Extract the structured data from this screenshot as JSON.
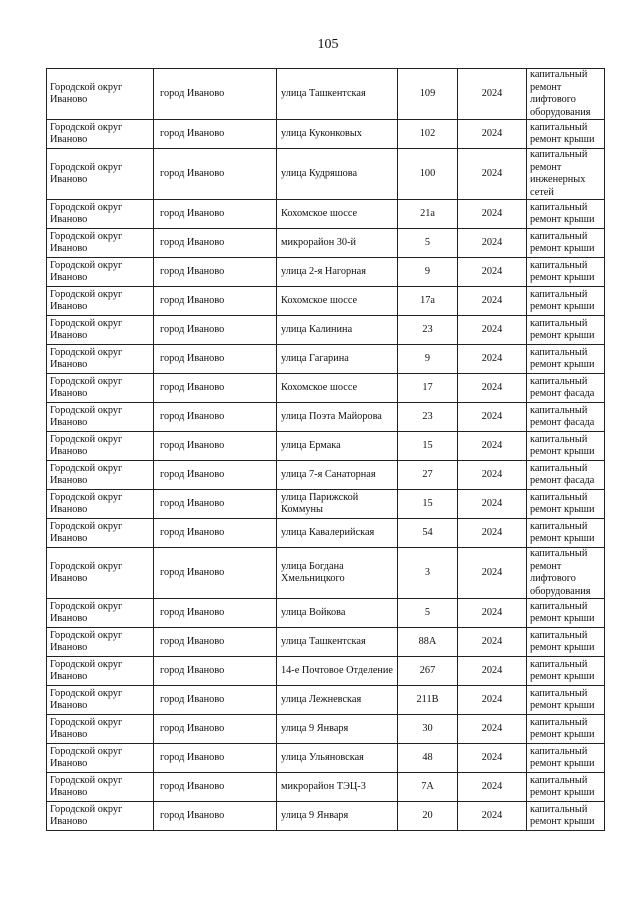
{
  "page_number": "105",
  "rows": [
    {
      "district": "Городской округ Иваново",
      "city": "город Иваново",
      "street": "улица Ташкентская",
      "house": "109",
      "year": "2024",
      "work": "капитальный ремонт лифтового оборудования",
      "lines": 4
    },
    {
      "district": "Городской округ Иваново",
      "city": "город Иваново",
      "street": "улица Куконковых",
      "house": "102",
      "year": "2024",
      "work": "капитальный ремонт крыши",
      "lines": 2
    },
    {
      "district": "Городской округ Иваново",
      "city": "город Иваново",
      "street": "улица Кудряшова",
      "house": "100",
      "year": "2024",
      "work": "капитальный ремонт инженерных сетей",
      "lines": 4
    },
    {
      "district": "Городской округ Иваново",
      "city": "город Иваново",
      "street": "Кохомское шоссе",
      "house": "21а",
      "year": "2024",
      "work": "капитальный ремонт крыши",
      "lines": 2
    },
    {
      "district": "Городской округ Иваново",
      "city": "город Иваново",
      "street": "микрорайон 30-й",
      "house": "5",
      "year": "2024",
      "work": "капитальный ремонт крыши",
      "lines": 2
    },
    {
      "district": "Городской округ Иваново",
      "city": "город Иваново",
      "street": "улица 2-я Нагорная",
      "house": "9",
      "year": "2024",
      "work": "капитальный ремонт крыши",
      "lines": 2
    },
    {
      "district": "Городской округ Иваново",
      "city": "город Иваново",
      "street": "Кохомское шоссе",
      "house": "17а",
      "year": "2024",
      "work": "капитальный ремонт крыши",
      "lines": 2
    },
    {
      "district": "Городской округ Иваново",
      "city": "город Иваново",
      "street": "улица Калинина",
      "house": "23",
      "year": "2024",
      "work": "капитальный ремонт крыши",
      "lines": 2
    },
    {
      "district": "Городской округ Иваново",
      "city": "город Иваново",
      "street": "улица Гагарина",
      "house": "9",
      "year": "2024",
      "work": "капитальный ремонт крыши",
      "lines": 2
    },
    {
      "district": "Городской округ Иваново",
      "city": "город Иваново",
      "street": "Кохомское шоссе",
      "house": "17",
      "year": "2024",
      "work": "капитальный ремонт фасада",
      "lines": 2
    },
    {
      "district": "Городской округ Иваново",
      "city": "город Иваново",
      "street": "улица Поэта Майорова",
      "house": "23",
      "year": "2024",
      "work": "капитальный ремонт фасада",
      "lines": 2
    },
    {
      "district": "Городской округ Иваново",
      "city": "город Иваново",
      "street": "улица Ермака",
      "house": "15",
      "year": "2024",
      "work": "капитальный ремонт крыши",
      "lines": 2
    },
    {
      "district": "Городской округ Иваново",
      "city": "город Иваново",
      "street": "улица 7-я Санаторная",
      "house": "27",
      "year": "2024",
      "work": "капитальный ремонт фасада",
      "lines": 2
    },
    {
      "district": "Городской округ Иваново",
      "city": "город Иваново",
      "street": "улица Парижской Коммуны",
      "house": "15",
      "year": "2024",
      "work": "капитальный ремонт крыши",
      "lines": 2
    },
    {
      "district": "Городской округ Иваново",
      "city": "город Иваново",
      "street": "улица Кавалерийская",
      "house": "54",
      "year": "2024",
      "work": "капитальный ремонт крыши",
      "lines": 2
    },
    {
      "district": "Городской округ Иваново",
      "city": "город Иваново",
      "street": "улица Богдана Хмельницкого",
      "house": "3",
      "year": "2024",
      "work": "капитальный ремонт лифтового оборудования",
      "lines": 4
    },
    {
      "district": "Городской округ Иваново",
      "city": "город Иваново",
      "street": "улица Войкова",
      "house": "5",
      "year": "2024",
      "work": "капитальный ремонт крыши",
      "lines": 2
    },
    {
      "district": "Городской округ Иваново",
      "city": "город Иваново",
      "street": "улица Ташкентская",
      "house": "88А",
      "year": "2024",
      "work": "капитальный ремонт крыши",
      "lines": 2
    },
    {
      "district": "Городской округ Иваново",
      "city": "город Иваново",
      "street": "14-е Почтовое Отделение",
      "house": "267",
      "year": "2024",
      "work": "капитальный ремонт крыши",
      "lines": 2
    },
    {
      "district": "Городской округ Иваново",
      "city": "город Иваново",
      "street": "улица Лежневская",
      "house": "211В",
      "year": "2024",
      "work": "капитальный ремонт крыши",
      "lines": 2
    },
    {
      "district": "Городской округ Иваново",
      "city": "город Иваново",
      "street": "улица 9 Января",
      "house": "30",
      "year": "2024",
      "work": "капитальный ремонт крыши",
      "lines": 2
    },
    {
      "district": "Городской округ Иваново",
      "city": "город Иваново",
      "street": "улица Ульяновская",
      "house": "48",
      "year": "2024",
      "work": "капитальный ремонт крыши",
      "lines": 2
    },
    {
      "district": "Городской округ Иваново",
      "city": "город Иваново",
      "street": "микрорайон ТЭЦ-3",
      "house": "7А",
      "year": "2024",
      "work": "капитальный ремонт крыши",
      "lines": 2
    },
    {
      "district": "Городской округ Иваново",
      "city": "город Иваново",
      "street": "улица 9 Января",
      "house": "20",
      "year": "2024",
      "work": "капитальный ремонт крыши",
      "lines": 2
    }
  ]
}
